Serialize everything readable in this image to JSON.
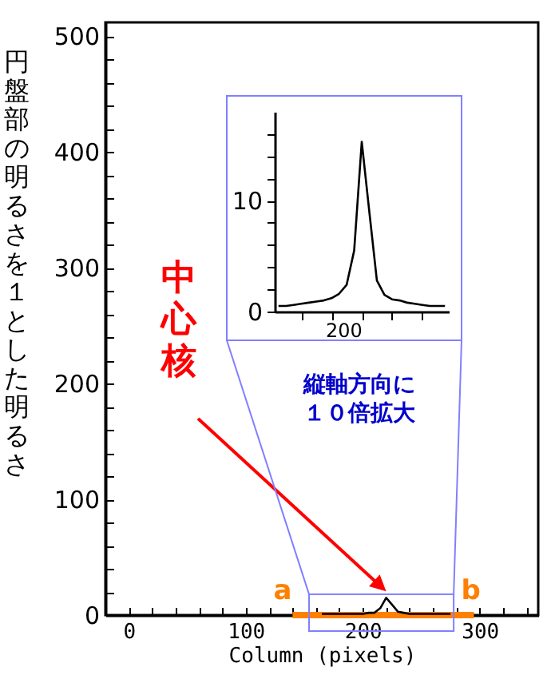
{
  "chart_data": [
    {
      "type": "line",
      "xlabel": "Column (pixels)",
      "ylabel": "円盤部の明るさを１とした明るさ",
      "xlim": [
        -20,
        350
      ],
      "xticks": [
        0,
        {
          "value": 20,
          "label": null
        },
        {
          "value": 40,
          "label": null
        },
        {
          "value": 60,
          "label": null
        },
        {
          "value": 80,
          "label": null
        },
        100,
        {
          "value": 120,
          "label": null
        },
        {
          "value": 140,
          "label": null
        },
        {
          "value": 160,
          "label": null
        },
        {
          "value": 180,
          "label": null
        },
        200,
        {
          "value": 220,
          "label": null
        },
        {
          "value": 240,
          "label": null
        },
        {
          "value": 260,
          "label": null
        },
        {
          "value": 280,
          "label": null
        },
        300,
        {
          "value": 320,
          "label": null
        },
        {
          "value": 340,
          "label": null
        }
      ],
      "ylim": [
        0,
        512
      ],
      "yticks": [
        0,
        {
          "value": 20,
          "label": null
        },
        {
          "value": 40,
          "label": null
        },
        {
          "value": 60,
          "label": null
        },
        {
          "value": 80,
          "label": null
        },
        100,
        {
          "value": 120,
          "label": null
        },
        {
          "value": 140,
          "label": null
        },
        {
          "value": 160,
          "label": null
        },
        {
          "value": 180,
          "label": null
        },
        200,
        {
          "value": 220,
          "label": null
        },
        {
          "value": 240,
          "label": null
        },
        {
          "value": 260,
          "label": null
        },
        {
          "value": 280,
          "label": null
        },
        300,
        {
          "value": 320,
          "label": null
        },
        {
          "value": 340,
          "label": null
        },
        {
          "value": 360,
          "label": null
        },
        {
          "value": 380,
          "label": null
        },
        400,
        {
          "value": 420,
          "label": null
        },
        {
          "value": 440,
          "label": null
        },
        {
          "value": 460,
          "label": null
        },
        {
          "value": 480,
          "label": null
        },
        500
      ],
      "grid": false,
      "series": [
        {
          "color": "#000000",
          "x": [
            165,
            170,
            175,
            180,
            185,
            190,
            195,
            200,
            205,
            210,
            215,
            220,
            225,
            230,
            235,
            240,
            245,
            250,
            255,
            260,
            265,
            270,
            275
          ],
          "values": [
            1,
            1,
            1,
            1,
            1,
            1,
            1,
            1,
            2,
            2,
            6,
            15,
            9,
            3,
            2,
            1,
            1,
            1,
            1,
            1,
            1,
            1,
            1
          ]
        },
        {
          "color": "#ff8000",
          "x": [
            140,
            295
          ],
          "values": [
            0,
            0
          ]
        }
      ],
      "annotations": [
        "中心核",
        "a",
        "b",
        "縦軸方向に１０倍拡大"
      ]
    },
    {
      "type": "line",
      "categories": [
        null,
        null,
        null,
        null,
        null,
        null,
        null,
        null,
        null,
        null,
        null,
        null,
        null,
        null,
        null,
        null,
        null,
        null,
        null,
        null,
        null,
        null,
        null
      ],
      "annotations": [
        "200"
      ],
      "ylim": [
        0,
        18
      ],
      "yticks": [
        0,
        {
          "value": 2,
          "label": null
        },
        {
          "value": 4,
          "label": null
        },
        {
          "value": 6,
          "label": null
        },
        {
          "value": 8,
          "label": null
        },
        10,
        {
          "value": 12,
          "label": null
        },
        {
          "value": 14,
          "label": null
        },
        {
          "value": 16,
          "label": null
        }
      ],
      "grid": false,
      "series": [
        {
          "color": "#000000",
          "values": [
            0.5,
            0.5,
            0.6,
            0.7,
            0.8,
            0.9,
            1.0,
            1.2,
            1.6,
            2.4,
            5.5,
            15.3,
            9,
            2.8,
            1.5,
            1.1,
            1.0,
            0.8,
            0.7,
            0.6,
            0.5,
            0.5,
            0.5
          ]
        }
      ]
    }
  ]
}
